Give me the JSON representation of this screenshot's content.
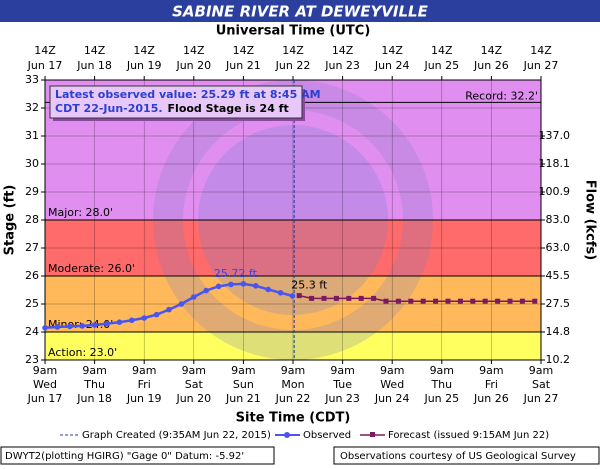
{
  "chart_data": {
    "type": "hydrograph",
    "title": "SABINE RIVER AT DEWEYVILLE",
    "top_axis_label": "Universal Time (UTC)",
    "xlabel": "Site Time (CDT)",
    "ylabel": "Stage (ft)",
    "y2label": "Flow (kcfs)",
    "xlim": [
      "Jun 17 09:00",
      "Jun 27 09:00"
    ],
    "ylim": [
      23,
      33
    ],
    "yticks": [
      23,
      24,
      25,
      26,
      27,
      28,
      29,
      30,
      31,
      32,
      33
    ],
    "y2ticks": [
      {
        "value": 10.2,
        "at_stage": 23
      },
      {
        "value": 14.8,
        "at_stage": 24
      },
      {
        "value": 27.5,
        "at_stage": 25
      },
      {
        "value": 45.5,
        "at_stage": 26
      },
      {
        "value": 63.0,
        "label": "63.0",
        "at_stage": 27
      },
      {
        "value": 83.0,
        "label": "83.0",
        "at_stage": 28
      },
      {
        "value": 100.9,
        "at_stage": 29
      },
      {
        "value": 118.1,
        "at_stage": 30
      },
      {
        "value": 137.0,
        "label": "137.0",
        "at_stage": 31
      }
    ],
    "grid": true,
    "xticks": [
      {
        "value": "Jun 17 09:00",
        "time": "9am",
        "weekday": "Wed",
        "date": "Jun 17"
      },
      {
        "value": "Jun 18 09:00",
        "time": "9am",
        "weekday": "Thu",
        "date": "Jun 18"
      },
      {
        "value": "Jun 19 09:00",
        "time": "9am",
        "weekday": "Fri",
        "date": "Jun 19"
      },
      {
        "value": "Jun 20 09:00",
        "time": "9am",
        "weekday": "Sat",
        "date": "Jun 20"
      },
      {
        "value": "Jun 21 09:00",
        "time": "9am",
        "weekday": "Sun",
        "date": "Jun 21"
      },
      {
        "value": "Jun 22 09:00",
        "time": "9am",
        "weekday": "Mon",
        "date": "Jun 22"
      },
      {
        "value": "Jun 23 09:00",
        "time": "9am",
        "weekday": "Tue",
        "date": "Jun 23"
      },
      {
        "value": "Jun 24 09:00",
        "time": "9am",
        "weekday": "Wed",
        "date": "Jun 24"
      },
      {
        "value": "Jun 25 09:00",
        "time": "9am",
        "weekday": "Thu",
        "date": "Jun 25"
      },
      {
        "value": "Jun 26 09:00",
        "time": "9am",
        "weekday": "Fri",
        "date": "Jun 26"
      },
      {
        "value": "Jun 27 09:00",
        "time": "9am",
        "weekday": "Sat",
        "date": "Jun 27"
      }
    ],
    "top_ticks": [
      {
        "value": "Jun 17 09:00",
        "time": "14Z",
        "date": "Jun 17"
      },
      {
        "value": "Jun 18 09:00",
        "time": "14Z",
        "date": "Jun 18"
      },
      {
        "value": "Jun 19 09:00",
        "time": "14Z",
        "date": "Jun 19"
      },
      {
        "value": "Jun 20 09:00",
        "time": "14Z",
        "date": "Jun 20"
      },
      {
        "value": "Jun 21 09:00",
        "time": "14Z",
        "date": "Jun 21"
      },
      {
        "value": "Jun 22 09:00",
        "time": "14Z",
        "date": "Jun 22"
      },
      {
        "value": "Jun 23 09:00",
        "time": "14Z",
        "date": "Jun 23"
      },
      {
        "value": "Jun 24 09:00",
        "time": "14Z",
        "date": "Jun 24"
      },
      {
        "value": "Jun 25 09:00",
        "time": "14Z",
        "date": "Jun 25"
      },
      {
        "value": "Jun 26 09:00",
        "time": "14Z",
        "date": "Jun 26"
      },
      {
        "value": "Jun 27 09:00",
        "time": "14Z",
        "date": "Jun 27"
      }
    ],
    "thresholds": [
      {
        "label": "Major: 28.0'",
        "value": 28,
        "color": "#e08ef0"
      },
      {
        "label": "Moderate: 26.0'",
        "value": 26,
        "color": "#ff6a6a"
      },
      {
        "label": "Minor: 24.0'",
        "value": 24,
        "color": "#ffb85a"
      },
      {
        "label": "Action: 23.0'",
        "value": 23,
        "color": "#ffff60"
      }
    ],
    "record": {
      "label": "Record: 32.2'",
      "value": 32.2
    },
    "info": {
      "line1": "Latest observed value: 25.29 ft at 8:45 AM",
      "line2": "CDT 22-Jun-2015.",
      "flood_stage": "Flood Stage is 24 ft"
    },
    "graph_created": {
      "time": "Jun 22 09:35",
      "label": "Graph Created (9:35AM Jun 22, 2015)"
    },
    "series": [
      {
        "name": "Observed",
        "color": "#4a55f0",
        "x": [
          "Jun 17 09:00",
          "Jun 17 15:00",
          "Jun 17 21:00",
          "Jun 18 03:00",
          "Jun 18 09:00",
          "Jun 18 15:00",
          "Jun 18 21:00",
          "Jun 19 03:00",
          "Jun 19 09:00",
          "Jun 19 15:00",
          "Jun 19 21:00",
          "Jun 20 03:00",
          "Jun 20 09:00",
          "Jun 20 15:00",
          "Jun 20 21:00",
          "Jun 21 03:00",
          "Jun 21 09:00",
          "Jun 21 15:00",
          "Jun 21 21:00",
          "Jun 22 03:00",
          "Jun 22 08:45"
        ],
        "values": [
          24.15,
          24.18,
          24.2,
          24.22,
          24.25,
          24.3,
          24.35,
          24.42,
          24.5,
          24.62,
          24.8,
          25.0,
          25.25,
          25.48,
          25.63,
          25.7,
          25.72,
          25.65,
          25.52,
          25.4,
          25.29
        ],
        "value_labels": [
          null,
          null,
          null,
          null,
          null,
          null,
          null,
          null,
          null,
          null,
          null,
          null,
          null,
          null,
          null,
          null,
          "25.72 ft",
          null,
          null,
          null,
          null
        ]
      },
      {
        "name": "Forecast (issued 9:15AM Jun 22)",
        "color": "#7a1a60",
        "x": [
          "Jun 22 12:00",
          "Jun 22 18:00",
          "Jun 23 00:00",
          "Jun 23 06:00",
          "Jun 23 12:00",
          "Jun 23 18:00",
          "Jun 24 00:00",
          "Jun 24 06:00",
          "Jun 24 12:00",
          "Jun 24 18:00",
          "Jun 25 00:00",
          "Jun 25 06:00",
          "Jun 25 12:00",
          "Jun 25 18:00",
          "Jun 26 00:00",
          "Jun 26 06:00",
          "Jun 26 12:00",
          "Jun 26 18:00",
          "Jun 27 00:00",
          "Jun 27 06:00"
        ],
        "values": [
          25.3,
          25.2,
          25.2,
          25.2,
          25.2,
          25.2,
          25.2,
          25.1,
          25.1,
          25.1,
          25.1,
          25.1,
          25.1,
          25.1,
          25.1,
          25.1,
          25.1,
          25.1,
          25.1,
          25.1
        ],
        "value_labels": [
          "25.3 ft",
          null,
          null,
          null,
          null,
          null,
          null,
          null,
          null,
          null,
          null,
          null,
          null,
          null,
          null,
          null,
          null,
          null,
          null,
          null
        ]
      }
    ],
    "footer_left": "DWYT2(plotting HGIRG) \"Gage 0\" Datum: -5.92'",
    "footer_right": "Observations courtesy of US Geological Survey"
  }
}
